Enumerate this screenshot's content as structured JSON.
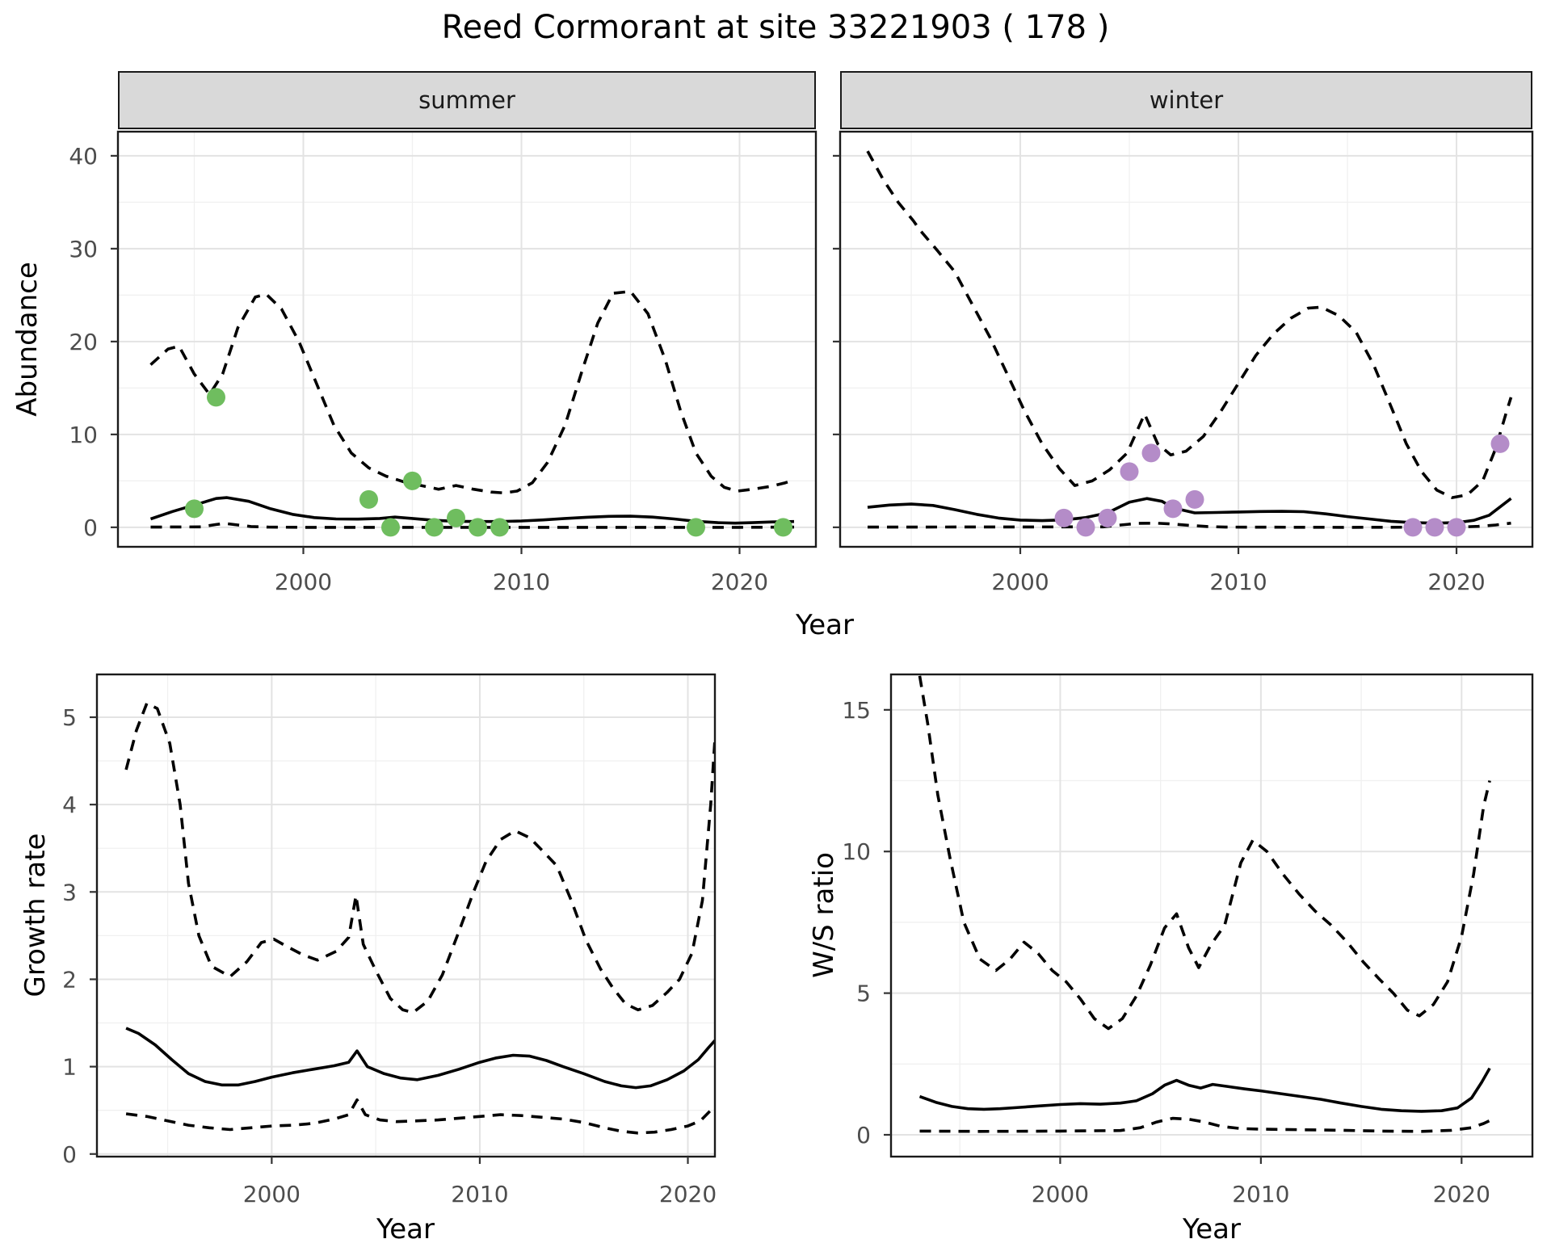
{
  "title": "Reed Cormorant at site 33221903 ( 178 )",
  "labels": {
    "abundance": "Abundance",
    "year": "Year",
    "growth_rate": "Growth rate",
    "ws_ratio": "W/S ratio"
  },
  "facets": [
    "summer",
    "winter"
  ],
  "colors": {
    "summer_points": "#6FBD5F",
    "winter_points": "#B48CC8",
    "line": "#000000",
    "panel_border": "#1a1a1a",
    "strip_fill": "#D9D9D9",
    "grid_major": "#E3E3E3",
    "grid_minor": "#F0F0F0",
    "tick_text": "#4D4D4D"
  },
  "chart_data": [
    {
      "id": "abundance-summer",
      "type": "line",
      "facet_label": "summer",
      "xlabel": "Year",
      "ylabel": "Abundance",
      "x_domain": [
        1991.5,
        2023.5
      ],
      "y_domain": [
        -2.1,
        42.6
      ],
      "x_major": [
        2000,
        2010,
        2020
      ],
      "x_minor": [
        1995,
        2005,
        2015
      ],
      "y_major": [
        0,
        10,
        20,
        30,
        40
      ],
      "y_minor": [
        5,
        15,
        25,
        35
      ],
      "point_color": "#6FBD5F",
      "observations": {
        "years": [
          1995,
          1996,
          2003,
          2004,
          2005,
          2006,
          2007,
          2008,
          2009,
          2018,
          2022
        ],
        "values": [
          2,
          14,
          3,
          0,
          5,
          0,
          1,
          0,
          0,
          0,
          0
        ]
      },
      "series": [
        {
          "name": "upper_ci",
          "style": "dashed",
          "x": [
            1993,
            1993.8,
            1994.3,
            1995,
            1995.7,
            1996.3,
            1997,
            1997.8,
            1998.3,
            1999,
            1999.8,
            2000.6,
            2001.4,
            2002.2,
            2003,
            2003.8,
            2004.6,
            2005.4,
            2006.2,
            2007,
            2007.8,
            2008.6,
            2009.2,
            2009.8,
            2010.5,
            2011.2,
            2012,
            2012.8,
            2013.5,
            2014.2,
            2015,
            2015.8,
            2016.6,
            2017.3,
            2018,
            2018.7,
            2019.3,
            2019.9,
            2020.6,
            2021.4,
            2022.1,
            2022.5
          ],
          "y": [
            17.5,
            19.2,
            19.5,
            16.5,
            14.3,
            16.5,
            21.5,
            24.8,
            25.1,
            23.5,
            20.0,
            15.5,
            11.0,
            8.0,
            6.4,
            5.5,
            4.9,
            4.5,
            4.1,
            4.5,
            4.1,
            3.8,
            3.7,
            3.9,
            4.8,
            7.0,
            11.0,
            17.0,
            22.0,
            25.2,
            25.4,
            23.0,
            18.0,
            12.5,
            8.0,
            5.5,
            4.3,
            3.9,
            4.1,
            4.4,
            4.8,
            5.1
          ]
        },
        {
          "name": "fit",
          "style": "solid",
          "x": [
            1993,
            1994,
            1995,
            1996,
            1996.5,
            1997.5,
            1998.5,
            1999.5,
            2000.5,
            2001.5,
            2002.5,
            2003.5,
            2004.2,
            2005,
            2006,
            2007,
            2008,
            2009,
            2010,
            2011,
            2012,
            2013,
            2014,
            2015,
            2016,
            2017,
            2018,
            2019,
            2019.8,
            2020.6,
            2021.5,
            2022.5
          ],
          "y": [
            0.9,
            1.7,
            2.4,
            3.1,
            3.2,
            2.8,
            2.0,
            1.4,
            1.05,
            0.9,
            0.88,
            0.95,
            1.1,
            0.95,
            0.75,
            0.65,
            0.62,
            0.62,
            0.68,
            0.8,
            0.95,
            1.08,
            1.18,
            1.2,
            1.1,
            0.9,
            0.65,
            0.5,
            0.45,
            0.5,
            0.58,
            0.62
          ]
        },
        {
          "name": "lower_ci",
          "style": "dashed",
          "x": [
            1993,
            1995.3,
            1996,
            1996.4,
            1997,
            1997.6,
            1998.4,
            2000,
            2005,
            2010,
            2015,
            2020,
            2022.5
          ],
          "y": [
            0.02,
            0.05,
            0.3,
            0.42,
            0.25,
            0.08,
            0.02,
            0.0,
            0.0,
            0.0,
            0.0,
            0.0,
            0.02
          ]
        }
      ]
    },
    {
      "id": "abundance-winter",
      "type": "line",
      "facet_label": "winter",
      "xlabel": "Year",
      "ylabel": "Abundance",
      "x_domain": [
        1991.74,
        2023.48
      ],
      "y_domain": [
        -2.1,
        42.6
      ],
      "x_major": [
        2000,
        2010,
        2020
      ],
      "x_minor": [
        1995,
        2005,
        2015
      ],
      "y_major": [
        0,
        10,
        20,
        30,
        40
      ],
      "y_minor": [
        5,
        15,
        25,
        35
      ],
      "point_color": "#B48CC8",
      "observations": {
        "years": [
          2002,
          2003,
          2004,
          2005,
          2006,
          2007,
          2008,
          2018,
          2019,
          2020,
          2022
        ],
        "values": [
          1,
          0,
          1,
          6,
          8,
          2,
          3,
          0,
          0,
          0,
          9
        ]
      },
      "series": [
        {
          "name": "upper_ci",
          "style": "dashed",
          "x": [
            1993,
            1993.7,
            1994.4,
            1995.1,
            1995.4,
            1996.2,
            1997,
            1997.8,
            1998.6,
            1999.4,
            2000.2,
            2001,
            2001.8,
            2002.5,
            2003.3,
            2004.1,
            2004.9,
            2005.7,
            2006.3,
            2006.9,
            2007.6,
            2008.4,
            2009.2,
            2010,
            2010.8,
            2011.6,
            2012.4,
            2013.2,
            2013.8,
            2014.6,
            2015.4,
            2016.2,
            2017,
            2017.7,
            2018.4,
            2019.1,
            2019.8,
            2020.5,
            2021.2,
            2021.8,
            2022.3,
            2022.5
          ],
          "y": [
            40.5,
            37.5,
            35.0,
            33.0,
            32.0,
            29.8,
            27.5,
            24.0,
            20.5,
            16.5,
            12.5,
            9.0,
            6.3,
            4.5,
            5.0,
            6.2,
            8.0,
            12.2,
            9.0,
            7.8,
            8.2,
            9.8,
            12.5,
            15.5,
            18.5,
            20.8,
            22.5,
            23.6,
            23.7,
            22.8,
            21.0,
            17.5,
            13.0,
            9.0,
            6.0,
            4.0,
            3.2,
            3.5,
            5.0,
            8.5,
            12.5,
            14.0
          ]
        },
        {
          "name": "fit",
          "style": "solid",
          "x": [
            1993,
            1994,
            1995,
            1996,
            1997,
            1998,
            1999,
            2000,
            2001,
            2002,
            2003,
            2004,
            2005,
            2005.8,
            2006.5,
            2007,
            2008,
            2009,
            2010,
            2011,
            2012,
            2013,
            2014,
            2015,
            2016,
            2017,
            2018,
            2019,
            2020,
            2020.8,
            2021.5,
            2022,
            2022.5
          ],
          "y": [
            2.15,
            2.4,
            2.5,
            2.35,
            1.9,
            1.4,
            1.0,
            0.78,
            0.72,
            0.8,
            1.05,
            1.55,
            2.7,
            3.1,
            2.8,
            2.1,
            1.55,
            1.6,
            1.65,
            1.7,
            1.72,
            1.68,
            1.45,
            1.15,
            0.9,
            0.65,
            0.5,
            0.45,
            0.5,
            0.75,
            1.3,
            2.2,
            3.1
          ]
        },
        {
          "name": "lower_ci",
          "style": "dashed",
          "x": [
            1993,
            2003.8,
            2004.6,
            2005.4,
            2006.2,
            2007,
            2007.8,
            2008.6,
            2009.4,
            2015,
            2020,
            2021,
            2021.8,
            2022.5
          ],
          "y": [
            0.02,
            0.05,
            0.25,
            0.42,
            0.45,
            0.35,
            0.2,
            0.08,
            0.02,
            0.0,
            0.02,
            0.1,
            0.25,
            0.45
          ]
        }
      ]
    },
    {
      "id": "growth-rate",
      "type": "line",
      "facet_label": null,
      "xlabel": "Year",
      "ylabel": "Growth rate",
      "x_domain": [
        1991.6,
        2021.3
      ],
      "y_domain": [
        -0.03,
        5.49
      ],
      "x_major": [
        2000,
        2010,
        2020
      ],
      "x_minor": [
        1995,
        2005,
        2015
      ],
      "y_major": [
        0,
        1,
        2,
        3,
        4,
        5
      ],
      "y_minor": [
        0.5,
        1.5,
        2.5,
        3.5,
        4.5
      ],
      "point_color": null,
      "observations": {
        "years": [],
        "values": []
      },
      "series": [
        {
          "name": "upper_ci",
          "style": "dashed",
          "x": [
            1993,
            1993.5,
            1994,
            1994.5,
            1995.1,
            1995.6,
            1996,
            1996.5,
            1997.1,
            1998,
            1998.8,
            1999.5,
            2000.1,
            2000.7,
            2001.5,
            2002.2,
            2003.1,
            2003.7,
            2004.05,
            2004.4,
            2005,
            2005.7,
            2006.3,
            2006.8,
            2007.5,
            2008.2,
            2009,
            2009.7,
            2010.3,
            2011,
            2011.7,
            2012.4,
            2013.1,
            2013.7,
            2014.4,
            2015.1,
            2015.8,
            2016.4,
            2017,
            2017.6,
            2018.3,
            2019,
            2019.6,
            2020.2,
            2020.7,
            2021.1,
            2021.3
          ],
          "y": [
            4.4,
            4.85,
            5.16,
            5.1,
            4.7,
            4.0,
            3.1,
            2.5,
            2.15,
            2.03,
            2.2,
            2.42,
            2.46,
            2.38,
            2.28,
            2.22,
            2.32,
            2.48,
            2.96,
            2.4,
            2.1,
            1.78,
            1.65,
            1.62,
            1.75,
            2.05,
            2.55,
            3.0,
            3.35,
            3.6,
            3.7,
            3.62,
            3.45,
            3.3,
            2.9,
            2.45,
            2.12,
            1.9,
            1.72,
            1.65,
            1.7,
            1.85,
            2.0,
            2.3,
            2.9,
            4.0,
            4.75
          ]
        },
        {
          "name": "fit",
          "style": "solid",
          "x": [
            1993,
            1993.6,
            1994.4,
            1995.2,
            1996,
            1996.8,
            1997.6,
            1998.4,
            1999.2,
            2000,
            2001,
            2002,
            2003,
            2003.7,
            2004.1,
            2004.6,
            2005.4,
            2006.2,
            2007,
            2008,
            2009,
            2010,
            2010.8,
            2011.6,
            2012.4,
            2013.2,
            2014,
            2015,
            2016,
            2016.8,
            2017.5,
            2018.2,
            2019,
            2019.8,
            2020.5,
            2021,
            2021.3
          ],
          "y": [
            1.44,
            1.38,
            1.25,
            1.08,
            0.92,
            0.83,
            0.79,
            0.79,
            0.83,
            0.88,
            0.93,
            0.97,
            1.01,
            1.05,
            1.18,
            1.0,
            0.92,
            0.87,
            0.85,
            0.9,
            0.97,
            1.05,
            1.1,
            1.13,
            1.12,
            1.07,
            1.0,
            0.92,
            0.83,
            0.78,
            0.76,
            0.78,
            0.85,
            0.95,
            1.08,
            1.22,
            1.3
          ]
        },
        {
          "name": "lower_ci",
          "style": "dashed",
          "x": [
            1993,
            1994,
            1995,
            1996,
            1997,
            1998,
            1999,
            2000,
            2001,
            2002,
            2003,
            2003.7,
            2004.1,
            2004.5,
            2005.2,
            2006,
            2007,
            2008,
            2009,
            2010,
            2011,
            2012,
            2013,
            2014,
            2015,
            2016,
            2016.8,
            2017.6,
            2018.4,
            2019.2,
            2020,
            2020.6,
            2021.1,
            2021.3
          ],
          "y": [
            0.46,
            0.43,
            0.38,
            0.33,
            0.3,
            0.28,
            0.3,
            0.32,
            0.33,
            0.35,
            0.4,
            0.45,
            0.62,
            0.45,
            0.39,
            0.37,
            0.38,
            0.39,
            0.41,
            0.43,
            0.45,
            0.44,
            0.42,
            0.4,
            0.36,
            0.3,
            0.26,
            0.24,
            0.25,
            0.28,
            0.32,
            0.38,
            0.5,
            0.56
          ]
        }
      ]
    },
    {
      "id": "ws-ratio",
      "type": "line",
      "facet_label": null,
      "xlabel": "Year",
      "ylabel": "W/S ratio",
      "x_domain": [
        1991.57,
        2023.53
      ],
      "y_domain": [
        -0.77,
        16.25
      ],
      "x_major": [
        2000,
        2010,
        2020
      ],
      "x_minor": [
        1995,
        2005,
        2015
      ],
      "y_major": [
        0,
        5,
        10,
        15
      ],
      "y_minor": [
        2.5,
        7.5,
        12.5
      ],
      "point_color": null,
      "observations": {
        "years": [],
        "values": []
      },
      "series": [
        {
          "name": "upper_ci",
          "style": "dashed",
          "x": [
            1993,
            1993.4,
            1993.9,
            1994.5,
            1995.2,
            1996,
            1996.8,
            1997.5,
            1998.2,
            1998.9,
            1999.6,
            2000.3,
            2001,
            2001.7,
            2002.4,
            2003.1,
            2003.8,
            2004.5,
            2005.2,
            2005.8,
            2006.4,
            2006.9,
            2007.5,
            2008.2,
            2009,
            2009.6,
            2010.3,
            2011.1,
            2011.9,
            2012.7,
            2013.5,
            2014.3,
            2015.1,
            2015.9,
            2016.6,
            2017.3,
            2017.9,
            2018.6,
            2019.3,
            2020,
            2020.6,
            2021.1,
            2021.4
          ],
          "y": [
            16.2,
            14.5,
            12.0,
            9.8,
            7.5,
            6.2,
            5.8,
            6.2,
            6.8,
            6.4,
            5.8,
            5.4,
            4.8,
            4.1,
            3.75,
            4.1,
            4.9,
            6.0,
            7.3,
            7.8,
            6.6,
            5.9,
            6.7,
            7.4,
            9.6,
            10.4,
            10.0,
            9.2,
            8.5,
            7.9,
            7.4,
            6.8,
            6.1,
            5.5,
            5.0,
            4.4,
            4.2,
            4.6,
            5.4,
            7.0,
            9.2,
            11.6,
            12.5
          ]
        },
        {
          "name": "fit",
          "style": "solid",
          "x": [
            1993,
            1993.8,
            1994.6,
            1995.4,
            1996.2,
            1997,
            1998,
            1999,
            2000,
            2001,
            2002,
            2003,
            2003.8,
            2004.6,
            2005.2,
            2005.8,
            2006.4,
            2007,
            2007.6,
            2008.4,
            2009.2,
            2010,
            2011,
            2012,
            2013,
            2014,
            2015,
            2016,
            2017,
            2018,
            2019,
            2019.8,
            2020.5,
            2021,
            2021.4
          ],
          "y": [
            1.35,
            1.15,
            1.0,
            0.92,
            0.9,
            0.92,
            0.97,
            1.02,
            1.07,
            1.1,
            1.08,
            1.12,
            1.2,
            1.45,
            1.75,
            1.92,
            1.75,
            1.65,
            1.78,
            1.7,
            1.62,
            1.55,
            1.45,
            1.35,
            1.25,
            1.12,
            1.0,
            0.9,
            0.85,
            0.83,
            0.85,
            0.95,
            1.3,
            1.85,
            2.35
          ]
        },
        {
          "name": "lower_ci",
          "style": "dashed",
          "x": [
            1993,
            1996,
            2000,
            2003,
            2004,
            2004.8,
            2005.6,
            2006.4,
            2007.2,
            2008,
            2009,
            2010,
            2012,
            2014,
            2016,
            2018,
            2019.5,
            2020.5,
            2021.1,
            2021.4
          ],
          "y": [
            0.13,
            0.12,
            0.13,
            0.15,
            0.25,
            0.45,
            0.58,
            0.55,
            0.45,
            0.3,
            0.22,
            0.2,
            0.18,
            0.16,
            0.13,
            0.12,
            0.16,
            0.25,
            0.4,
            0.5
          ]
        }
      ]
    }
  ]
}
